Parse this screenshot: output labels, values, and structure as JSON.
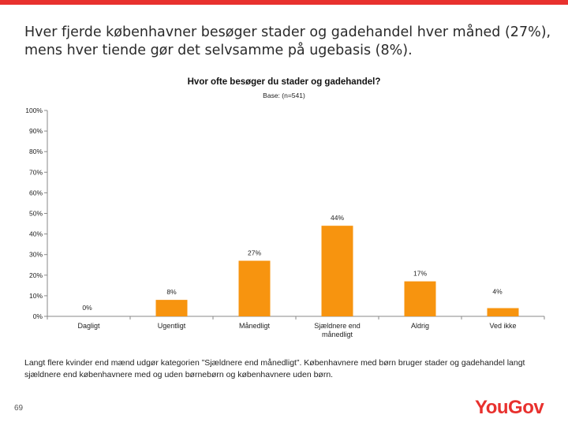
{
  "slide": {
    "title": "Hver fjerde københavner besøger stader og gadehandel hver måned (27%), mens hver tiende gør det selvsamme på ugebasis (8%).",
    "footnote": "Langt flere kvinder end mænd udgør kategorien ”Sjældnere end månedligt”. Københavnere med børn bruger stader og gadehandel langt sjældnere end københavnere med og uden børnebørn og københavnere uden børn.",
    "page_number": "69",
    "logo_text": "YouGov"
  },
  "colors": {
    "bar": "#f7940f",
    "accent": "#e8312e",
    "axis": "#888888"
  },
  "chart_data": {
    "type": "bar",
    "title": "Hvor ofte besøger du stader og gadehandel?",
    "subtitle": "Base: (n=541)",
    "categories": [
      "Dagligt",
      "Ugentligt",
      "Månedligt",
      "Sjældnere end månedligt",
      "Aldrig",
      "Ved ikke"
    ],
    "values": [
      0,
      8,
      27,
      44,
      17,
      4
    ],
    "value_labels": [
      "0%",
      "8%",
      "27%",
      "44%",
      "17%",
      "4%"
    ],
    "ylim": [
      0,
      100
    ],
    "yticks": [
      0,
      10,
      20,
      30,
      40,
      50,
      60,
      70,
      80,
      90,
      100
    ],
    "ytick_labels": [
      "0%",
      "10%",
      "20%",
      "30%",
      "40%",
      "50%",
      "60%",
      "70%",
      "80%",
      "90%",
      "100%"
    ],
    "grid": false,
    "legend": "none"
  }
}
